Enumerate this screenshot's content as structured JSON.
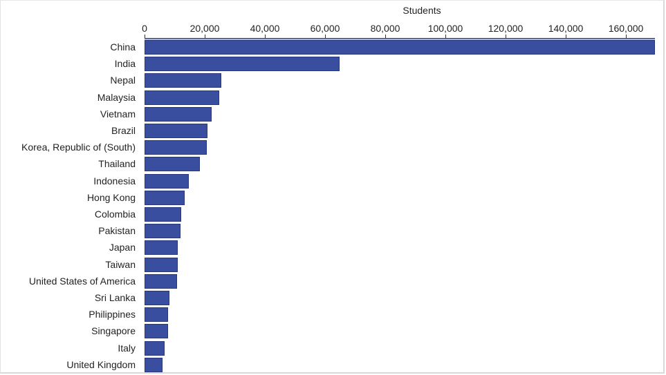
{
  "chart_data": {
    "type": "bar",
    "orientation": "horizontal",
    "title": "",
    "xlabel": "Students",
    "ylabel": "",
    "xlim": [
      0,
      170000
    ],
    "x_ticks": [
      0,
      20000,
      40000,
      60000,
      80000,
      100000,
      120000,
      140000,
      160000
    ],
    "x_tick_labels": [
      "0",
      "20,000",
      "40,000",
      "60,000",
      "80,000",
      "100,000",
      "120,000",
      "140,000",
      "160,000"
    ],
    "axis_position": "top",
    "grid": false,
    "legend": null,
    "bar_color": "#3a4ea0",
    "categories": [
      "China",
      "India",
      "Nepal",
      "Malaysia",
      "Vietnam",
      "Brazil",
      "Korea, Republic of (South)",
      "Thailand",
      "Indonesia",
      "Hong Kong",
      "Colombia",
      "Pakistan",
      "Japan",
      "Taiwan",
      "United States of America",
      "Sri Lanka",
      "Philippines",
      "Singapore",
      "Italy",
      "United Kingdom"
    ],
    "values": [
      169600,
      64800,
      25500,
      24800,
      22300,
      20900,
      20700,
      18400,
      14700,
      13300,
      12200,
      12000,
      11000,
      11000,
      10800,
      8300,
      7800,
      7800,
      6700,
      6000
    ]
  }
}
